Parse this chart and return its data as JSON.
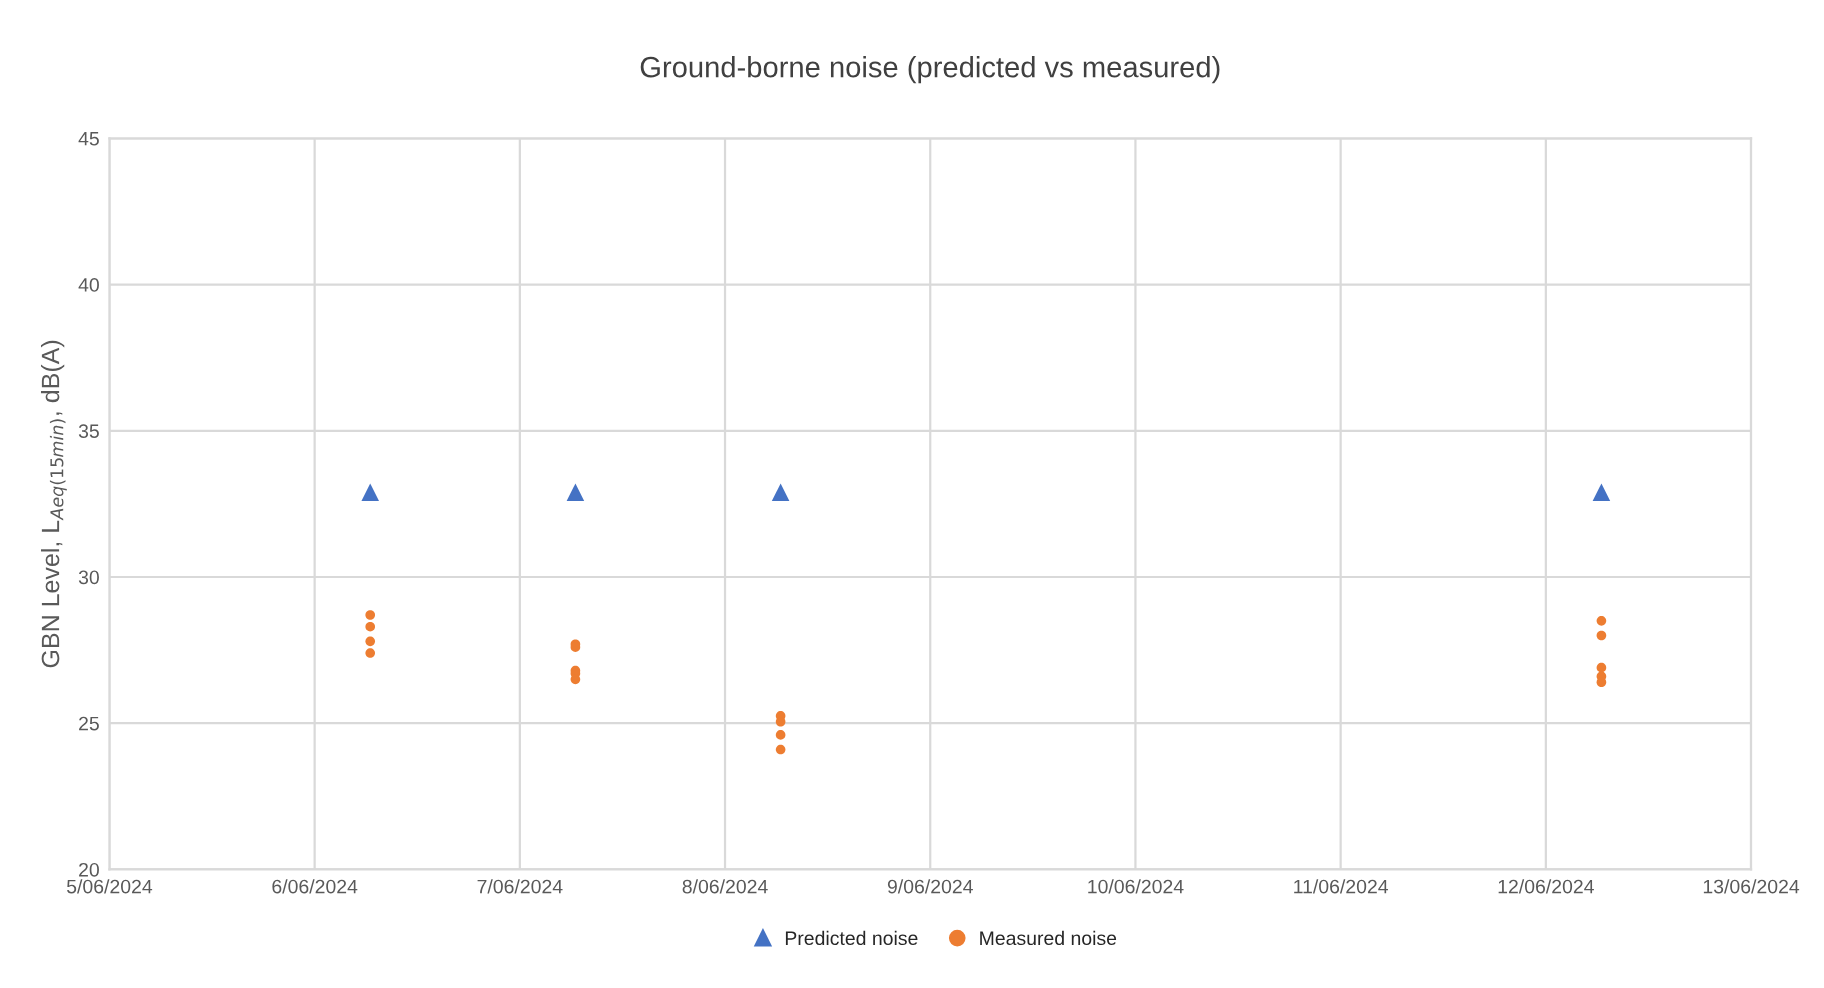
{
  "chart_data": {
    "type": "scatter",
    "title": "Ground-borne noise (predicted vs measured)",
    "ylabel": "GBN Level, L$_{Aeq(15min)}$, dB(A)",
    "xlim": [
      "2024-06-05",
      "2024-06-13"
    ],
    "xticks": [
      {
        "value": "2024-06-05",
        "label": "5/06/2024"
      },
      {
        "value": "2024-06-06",
        "label": "6/06/2024"
      },
      {
        "value": "2024-06-07",
        "label": "7/06/2024"
      },
      {
        "value": "2024-06-08",
        "label": "8/06/2024"
      },
      {
        "value": "2024-06-09",
        "label": "9/06/2024"
      },
      {
        "value": "2024-06-10",
        "label": "10/06/2024"
      },
      {
        "value": "2024-06-11",
        "label": "11/06/2024"
      },
      {
        "value": "2024-06-12",
        "label": "12/06/2024"
      },
      {
        "value": "2024-06-13",
        "label": "13/06/2024"
      }
    ],
    "ylim": [
      20,
      45
    ],
    "yticks": [
      20,
      25,
      30,
      35,
      40,
      45
    ],
    "grid": true,
    "legend": "bottom",
    "series": [
      {
        "name": "Predicted noise",
        "color": "#4472c4",
        "marker": "triangle",
        "x": [
          "2024-06-06T06:30",
          "2024-06-07T06:30",
          "2024-06-08T06:30",
          "2024-06-12T06:30"
        ],
        "values": [
          32.9,
          32.9,
          32.9,
          32.9
        ]
      },
      {
        "name": "Measured noise",
        "color": "#ed7d31",
        "marker": "circle",
        "x": [
          "2024-06-06T06:30",
          "2024-06-06T06:30",
          "2024-06-06T06:30",
          "2024-06-06T06:30",
          "2024-06-07T06:30",
          "2024-06-07T06:30",
          "2024-06-07T06:30",
          "2024-06-07T06:30",
          "2024-06-07T06:30",
          "2024-06-08T06:30",
          "2024-06-08T06:30",
          "2024-06-08T06:30",
          "2024-06-08T06:30",
          "2024-06-12T06:30",
          "2024-06-12T06:30",
          "2024-06-12T06:30",
          "2024-06-12T06:30",
          "2024-06-12T06:30"
        ],
        "values": [
          28.7,
          28.3,
          27.8,
          27.4,
          27.7,
          27.6,
          26.8,
          26.7,
          26.5,
          25.25,
          25.05,
          24.6,
          24.1,
          28.5,
          28.0,
          26.9,
          26.6,
          26.4
        ]
      }
    ]
  }
}
